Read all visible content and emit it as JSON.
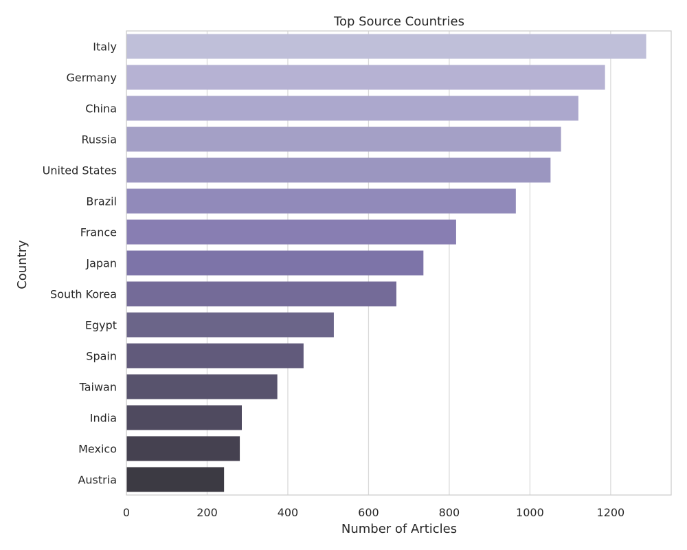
{
  "chart_data": {
    "type": "bar",
    "orientation": "horizontal",
    "title": "Top Source Countries",
    "xlabel": "Number of Articles",
    "ylabel": "Country",
    "categories": [
      "Italy",
      "Germany",
      "China",
      "Russia",
      "United States",
      "Brazil",
      "France",
      "Japan",
      "South Korea",
      "Egypt",
      "Spain",
      "Taiwan",
      "India",
      "Mexico",
      "Austria"
    ],
    "values": [
      1288,
      1186,
      1120,
      1077,
      1051,
      965,
      817,
      736,
      669,
      514,
      439,
      374,
      286,
      281,
      242
    ],
    "xlim": [
      0,
      1350
    ],
    "xticks": [
      "0",
      "200",
      "400",
      "600",
      "800",
      "1000",
      "1200"
    ],
    "grid": "vertical",
    "colors": [
      "#bfbfd9",
      "#b6b2d3",
      "#aca8cd",
      "#a4a0c6",
      "#9b96c0",
      "#918aba",
      "#887eb2",
      "#7d74a8",
      "#746b98",
      "#6b6589",
      "#615a7b",
      "#58536d",
      "#4f4a5f",
      "#454150",
      "#3c3a43"
    ]
  }
}
